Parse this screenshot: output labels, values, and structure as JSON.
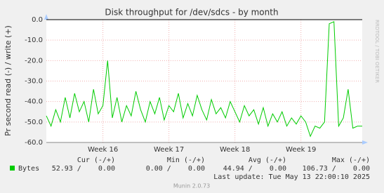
{
  "chart_data": {
    "type": "line",
    "title": "Disk throughput for /dev/sdcs - by month",
    "y_label": "Pr second read (-) / write (+)",
    "side_label": "RRDTOOL / TOBI OETIKER",
    "x": [
      0,
      0.5,
      1,
      1.5,
      2,
      2.5,
      3,
      3.5,
      4,
      4.5,
      5,
      5.5,
      6,
      6.5,
      7,
      7.5,
      8,
      8.5,
      9,
      9.5,
      10,
      10.5,
      11,
      11.5,
      12,
      12.5,
      13,
      13.5,
      14,
      14.5,
      15,
      15.5,
      16,
      16.5,
      17,
      17.5,
      18,
      18.5,
      19,
      19.5,
      20,
      20.5,
      21,
      21.5,
      22,
      22.5,
      23,
      23.5,
      24,
      24.5,
      25,
      25.5,
      26,
      26.5,
      27,
      27.5,
      28,
      28.5,
      29,
      29.5,
      30,
      30.5,
      31,
      31.5,
      32,
      32.5,
      33,
      33.5
    ],
    "series": [
      {
        "name": "Bytes",
        "color": "#00cc00",
        "values": [
          -47,
          -52,
          -44,
          -50,
          -38,
          -48,
          -36,
          -45,
          -40,
          -50,
          -34,
          -46,
          -42,
          -20,
          -48,
          -38,
          -50,
          -42,
          -47,
          -35,
          -44,
          -50,
          -40,
          -46,
          -38,
          -49,
          -42,
          -45,
          -36,
          -48,
          -41,
          -47,
          -37,
          -44,
          -49,
          -39,
          -46,
          -43,
          -48,
          -40,
          -45,
          -50,
          -42,
          -47,
          -44,
          -51,
          -43,
          -52,
          -46,
          -50,
          -45,
          -52,
          -48,
          -51,
          -47,
          -50,
          -57,
          -52,
          -53,
          -50,
          -2,
          -1,
          -52,
          -48,
          -34,
          -53,
          -52,
          -52
        ]
      }
    ],
    "xlim": [
      0,
      33.5
    ],
    "xticks": [
      {
        "value": 6,
        "label": "Week 16"
      },
      {
        "value": 13,
        "label": "Week 17"
      },
      {
        "value": 20,
        "label": "Week 18"
      },
      {
        "value": 27,
        "label": "Week 19"
      }
    ],
    "ylim": [
      -60,
      0
    ],
    "yticks": [
      {
        "value": 0,
        "label": "0.0"
      },
      {
        "value": -10,
        "label": "-10.0"
      },
      {
        "value": -20,
        "label": "-20.0"
      },
      {
        "value": -30,
        "label": "-30.0"
      },
      {
        "value": -40,
        "label": "-40.0"
      },
      {
        "value": -50,
        "label": "-50.0"
      },
      {
        "value": -60,
        "label": "-60.0"
      }
    ],
    "grid": true
  },
  "legend_table": {
    "headers": [
      "Cur (-/+)",
      "Min (-/+)",
      "Avg (-/+)",
      "Max (-/+)"
    ],
    "row": [
      "52.93 /    0.00",
      "0.00 /    0.00",
      "44.94 /    0.00",
      "106.73 /    0.00"
    ]
  },
  "last_update": "Last update: Tue May 13 22:00:10 2025",
  "footer": "Munin 2.0.73"
}
